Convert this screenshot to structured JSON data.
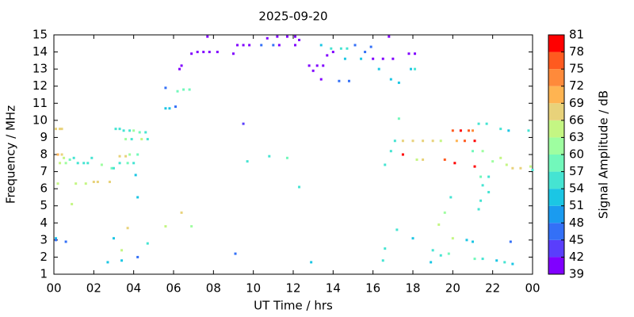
{
  "chart_data": {
    "type": "scatter",
    "title": "2025-09-20",
    "x_label": "UT Time / hrs",
    "y_label": "Frequency / MHz",
    "xlim": [
      0,
      24
    ],
    "ylim": [
      1,
      15
    ],
    "xticks": [
      {
        "value": 0,
        "label": "00"
      },
      {
        "value": 2,
        "label": "02"
      },
      {
        "value": 4,
        "label": "04"
      },
      {
        "value": 6,
        "label": "06"
      },
      {
        "value": 8,
        "label": "08"
      },
      10,
      12,
      14,
      16,
      18,
      20,
      22,
      {
        "value": 24,
        "label": "00"
      }
    ],
    "yticks": [
      1,
      2,
      3,
      4,
      5,
      6,
      7,
      8,
      9,
      10,
      11,
      12,
      13,
      14,
      15
    ],
    "x": [
      0.1,
      0.3,
      0.4,
      0.2,
      0.4,
      0.5,
      0.8,
      1.0,
      1.2,
      1.5,
      1.7,
      0.3,
      0.6,
      0.2,
      0.9,
      1.1,
      1.6,
      2.0,
      2.2,
      2.8,
      1.9,
      2.4,
      2.9,
      3.0,
      3.1,
      3.3,
      3.5,
      3.8,
      4.0,
      4.3,
      4.6,
      4.4,
      4.7,
      3.6,
      3.9,
      3.3,
      3.6,
      3.8,
      4.2,
      3.3,
      3.7,
      4.0,
      4.1,
      4.2,
      0.1,
      0.1,
      0.6,
      2.7,
      3.0,
      3.4,
      3.7,
      3.4,
      4.2,
      4.7,
      5.6,
      5.6,
      5.8,
      6.1,
      5.6,
      6.2,
      6.5,
      6.8,
      6.3,
      6.4,
      6.9,
      7.2,
      7.5,
      7.8,
      7.7,
      8.2,
      9.0,
      9.2,
      9.5,
      9.8,
      10.7,
      11.2,
      11.7,
      12.1,
      12.3,
      10.4,
      11.0,
      11.3,
      12.1,
      12.8,
      13.2,
      13.5,
      13.7,
      14.0,
      13.0,
      13.4,
      14.3,
      14.8,
      13.9,
      14.4,
      14.7,
      15.1,
      15.6,
      15.9,
      13.4,
      14.6,
      15.4,
      16.0,
      16.5,
      17.0,
      16.3,
      16.9,
      17.3,
      16.8,
      17.8,
      18.1,
      17.9,
      18.1,
      9.5,
      6.4,
      6.9,
      9.1,
      9.7,
      10.8,
      11.7,
      12.3,
      12.9,
      17.3,
      16.9,
      16.6,
      17.1,
      17.5,
      18.0,
      18.5,
      19.0,
      19.4,
      17.5,
      18.2,
      18.5,
      19.6,
      20.1,
      20.0,
      20.4,
      20.8,
      21.0,
      20.2,
      20.6,
      21.1,
      21.3,
      21.7,
      21.0,
      21.5,
      21.1,
      21.4,
      21.8,
      21.5,
      21.8,
      21.4,
      21.3,
      22.0,
      22.4,
      22.7,
      23.0,
      23.4,
      23.9,
      22.4,
      23.8,
      22.8,
      19.9,
      19.6,
      19.3,
      20.0,
      20.7,
      21.0,
      21.1,
      21.5,
      22.2,
      22.6,
      23.0,
      22.9,
      19.0,
      19.4,
      19.8,
      18.9,
      16.6,
      16.5,
      17.2,
      18.0,
      24.0
    ],
    "values": [
      9.5,
      9.5,
      9.5,
      8.0,
      8.0,
      7.8,
      7.7,
      7.8,
      7.5,
      7.5,
      7.5,
      7.5,
      7.5,
      6.3,
      5.1,
      6.3,
      6.3,
      6.4,
      6.4,
      6.4,
      7.8,
      7.4,
      7.2,
      7.2,
      9.5,
      9.5,
      9.4,
      9.4,
      9.4,
      9.3,
      9.3,
      8.9,
      8.9,
      8.9,
      8.9,
      7.9,
      7.9,
      8.0,
      8.0,
      7.5,
      7.5,
      7.5,
      6.8,
      5.5,
      3.1,
      3.0,
      2.9,
      1.7,
      3.1,
      2.4,
      3.7,
      1.8,
      2.0,
      2.8,
      11.9,
      10.7,
      10.7,
      10.8,
      3.8,
      11.7,
      11.8,
      11.8,
      13.0,
      13.2,
      13.9,
      14.0,
      14.0,
      14.0,
      14.9,
      14.0,
      13.9,
      14.4,
      14.4,
      14.4,
      14.8,
      14.9,
      14.9,
      14.9,
      14.7,
      14.4,
      14.4,
      14.4,
      14.4,
      13.2,
      13.2,
      13.2,
      13.8,
      14.0,
      12.9,
      12.4,
      12.3,
      12.3,
      14.2,
      14.2,
      14.2,
      14.4,
      14.0,
      14.3,
      14.4,
      13.6,
      13.6,
      13.6,
      13.6,
      13.6,
      13.0,
      12.4,
      12.2,
      14.9,
      13.9,
      13.9,
      13.0,
      13.0,
      9.8,
      4.6,
      3.8,
      2.2,
      7.6,
      7.9,
      7.8,
      6.1,
      1.7,
      10.1,
      8.2,
      7.4,
      8.8,
      8.8,
      8.8,
      8.8,
      8.8,
      8.8,
      8.0,
      7.7,
      7.7,
      7.7,
      7.5,
      9.4,
      9.4,
      9.4,
      9.4,
      8.8,
      8.8,
      8.8,
      9.8,
      9.8,
      8.2,
      8.2,
      7.3,
      6.7,
      6.7,
      6.2,
      5.8,
      5.3,
      4.8,
      7.6,
      7.8,
      7.4,
      7.2,
      7.2,
      7.3,
      9.5,
      9.4,
      9.4,
      5.5,
      4.6,
      3.9,
      3.1,
      3.0,
      2.9,
      1.9,
      1.9,
      1.8,
      1.7,
      1.6,
      2.9,
      2.4,
      2.1,
      2.2,
      1.7,
      2.5,
      1.8,
      3.6,
      3.1,
      7.1
    ],
    "amplitude": [
      67,
      67,
      67,
      70,
      67,
      64,
      58,
      55,
      55,
      55,
      55,
      64,
      61,
      64,
      64,
      64,
      64,
      67,
      67,
      67,
      55,
      61,
      58,
      55,
      55,
      55,
      55,
      55,
      61,
      58,
      55,
      64,
      55,
      61,
      55,
      67,
      67,
      61,
      58,
      55,
      58,
      55,
      52,
      52,
      52,
      46,
      46,
      52,
      52,
      64,
      67,
      52,
      46,
      55,
      46,
      52,
      52,
      46,
      64,
      58,
      58,
      58,
      40,
      40,
      40,
      40,
      40,
      40,
      40,
      40,
      40,
      40,
      40,
      40,
      40,
      40,
      40,
      40,
      40,
      46,
      46,
      40,
      40,
      40,
      40,
      40,
      40,
      40,
      40,
      40,
      46,
      46,
      55,
      55,
      55,
      46,
      46,
      46,
      52,
      52,
      52,
      40,
      40,
      40,
      52,
      52,
      52,
      40,
      40,
      40,
      52,
      55,
      43,
      67,
      61,
      46,
      55,
      55,
      58,
      55,
      52,
      58,
      55,
      55,
      55,
      67,
      67,
      67,
      67,
      64,
      79,
      64,
      67,
      76,
      80,
      76,
      79,
      76,
      73,
      70,
      76,
      79,
      55,
      55,
      58,
      61,
      80,
      58,
      55,
      55,
      55,
      55,
      55,
      61,
      64,
      64,
      67,
      67,
      64,
      55,
      55,
      52,
      55,
      61,
      64,
      64,
      52,
      52,
      58,
      55,
      52,
      55,
      52,
      46,
      55,
      55,
      58,
      52,
      55,
      55,
      55,
      52,
      55
    ],
    "colorbar": {
      "label": "Signal Amplitude / dB",
      "lim": [
        39,
        81
      ],
      "ticks": [
        39,
        42,
        45,
        48,
        51,
        54,
        57,
        60,
        63,
        66,
        69,
        72,
        75,
        78,
        81
      ],
      "colors": [
        "#8000ff",
        "#5a3efc",
        "#3370f7",
        "#1a9bf0",
        "#1bc6e4",
        "#45e4d2",
        "#72f8bb",
        "#9efea0",
        "#c4f683",
        "#e8d27a",
        "#ffb451",
        "#ff8a3a",
        "#ff5a1f",
        "#ff0000"
      ]
    }
  }
}
